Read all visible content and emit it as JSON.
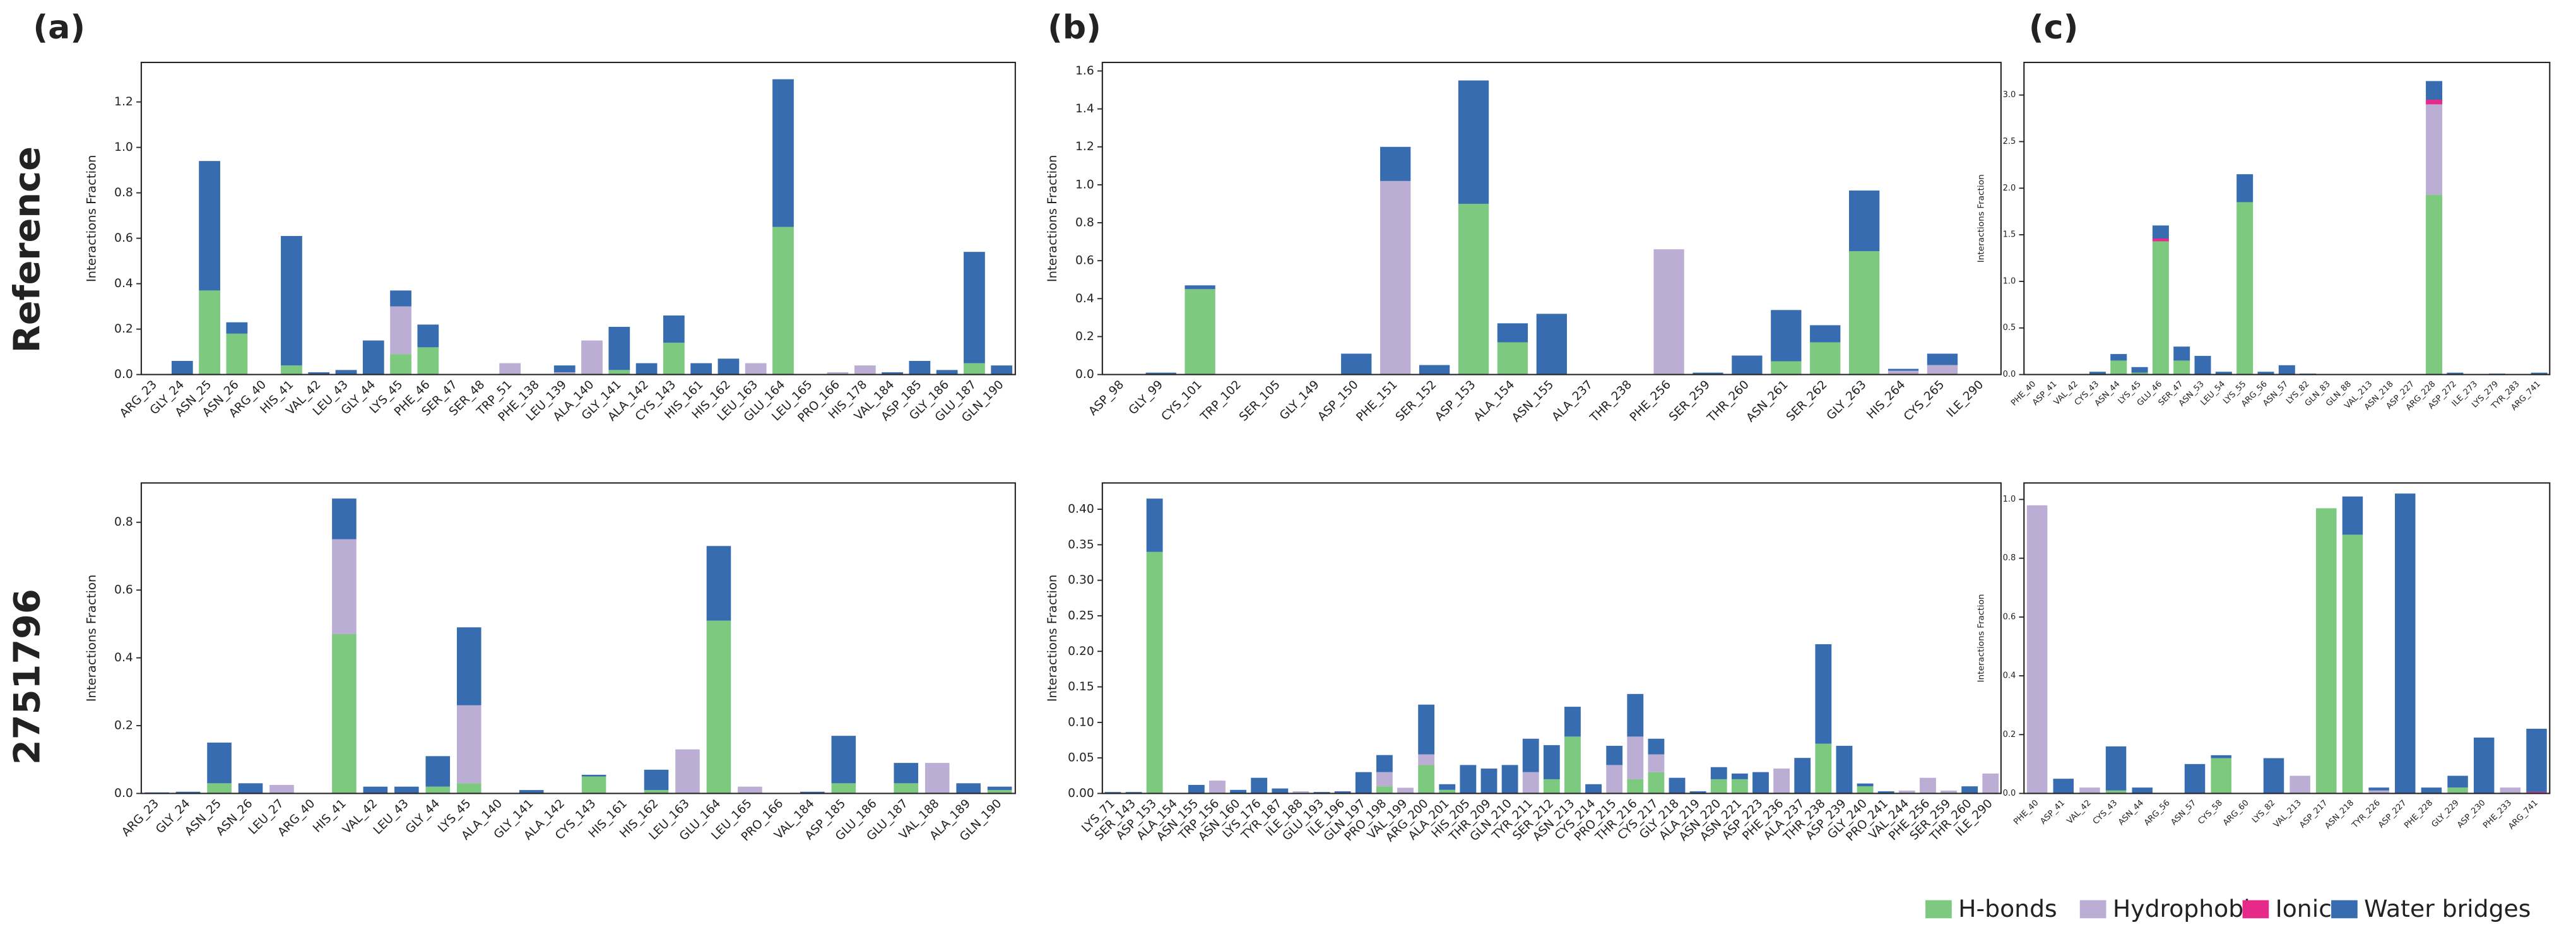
{
  "panel_labels": [
    "(a)",
    "(b)",
    "(c)"
  ],
  "row_labels": [
    "Reference",
    "2751796"
  ],
  "chart_data": [
    {
      "type": "bar",
      "stacked": true,
      "ylabel": "Interactions Fraction",
      "ylim": [
        0,
        1.374
      ],
      "yticks": [
        {
          "value": 0,
          "label": "0.0"
        },
        0.2,
        0.4,
        0.6,
        0.8,
        {
          "value": 1,
          "label": "1.0"
        },
        1.2
      ],
      "categories": [
        "ARG_23",
        "GLY_24",
        "ASN_25",
        "ASN_26",
        "ARG_40",
        "HIS_41",
        "VAL_42",
        "LEU_43",
        "GLY_44",
        "LYS_45",
        "PHE_46",
        "SER_47",
        "SER_48",
        "TRP_51",
        "PHE_138",
        "LEU_139",
        "ALA_140",
        "GLY_141",
        "ALA_142",
        "CYS_143",
        "HIS_161",
        "HIS_162",
        "LEU_163",
        "GLU_164",
        "LEU_165",
        "PRO_166",
        "HIS_178",
        "VAL_184",
        "ASP_185",
        "GLY_186",
        "GLU_187",
        "GLN_190"
      ],
      "series": [
        {
          "name": "H-bonds",
          "color": "#7dc97f",
          "values": [
            0,
            0,
            0.37,
            0.18,
            0,
            0.04,
            0,
            0,
            0,
            0.09,
            0.12,
            0,
            0,
            0,
            0,
            0,
            0,
            0.02,
            0,
            0.14,
            0,
            0,
            0,
            0.65,
            0,
            0,
            0,
            0,
            0,
            0,
            0.05,
            0
          ]
        },
        {
          "name": "Hydrophobic",
          "color": "#bcadd4",
          "values": [
            0,
            0,
            0,
            0,
            0,
            0,
            0,
            0,
            0,
            0.21,
            0,
            0,
            0,
            0.05,
            0,
            0.01,
            0.15,
            0,
            0,
            0,
            0,
            0,
            0.05,
            0,
            0,
            0.01,
            0.04,
            0,
            0,
            0,
            0,
            0
          ]
        },
        {
          "name": "Ionic",
          "color": "#e7298a",
          "values": [
            0,
            0,
            0,
            0,
            0,
            0,
            0,
            0,
            0,
            0,
            0,
            0,
            0,
            0,
            0,
            0,
            0,
            0,
            0,
            0,
            0,
            0,
            0,
            0,
            0,
            0,
            0,
            0,
            0,
            0,
            0,
            0
          ]
        },
        {
          "name": "Water bridges",
          "color": "#386cb0",
          "values": [
            0,
            0.06,
            0.57,
            0.05,
            0,
            0.57,
            0.01,
            0.02,
            0.15,
            0.07,
            0.1,
            0,
            0,
            0,
            0,
            0.03,
            0,
            0.19,
            0.05,
            0.12,
            0.05,
            0.07,
            0,
            0.65,
            0,
            0,
            0,
            0.01,
            0.06,
            0.02,
            0.49,
            0.04
          ]
        }
      ]
    },
    {
      "type": "bar",
      "stacked": true,
      "ylabel": "Interactions Fraction",
      "ylim": [
        0,
        1.645
      ],
      "yticks": [
        {
          "value": 0,
          "label": "0.0"
        },
        0.2,
        0.4,
        0.6,
        0.8,
        {
          "value": 1,
          "label": "1.0"
        },
        1.2,
        1.4,
        1.6
      ],
      "categories": [
        "ASP_98",
        "GLY_99",
        "CYS_101",
        "TRP_102",
        "SER_105",
        "GLY_149",
        "ASP_150",
        "PHE_151",
        "SER_152",
        "ASP_153",
        "ALA_154",
        "ASN_155",
        "ALA_237",
        "THR_238",
        "PHE_256",
        "SER_259",
        "THR_260",
        "ASN_261",
        "SER_262",
        "GLY_263",
        "HIS_264",
        "CYS_265",
        "ILE_290"
      ],
      "series": [
        {
          "name": "H-bonds",
          "color": "#7dc97f",
          "values": [
            0,
            0,
            0.45,
            0,
            0,
            0,
            0,
            0,
            0,
            0.9,
            0.17,
            0,
            0,
            0,
            0,
            0,
            0,
            0.07,
            0.17,
            0.65,
            0,
            0,
            0
          ]
        },
        {
          "name": "Hydrophobic",
          "color": "#bcadd4",
          "values": [
            0,
            0,
            0,
            0,
            0,
            0,
            0,
            1.02,
            0,
            0,
            0,
            0,
            0,
            0,
            0.66,
            0,
            0,
            0,
            0,
            0,
            0.02,
            0.05,
            0
          ]
        },
        {
          "name": "Ionic",
          "color": "#e7298a",
          "values": [
            0,
            0,
            0,
            0,
            0,
            0,
            0,
            0,
            0,
            0,
            0,
            0,
            0,
            0,
            0,
            0,
            0,
            0,
            0,
            0,
            0,
            0,
            0
          ]
        },
        {
          "name": "Water bridges",
          "color": "#386cb0",
          "values": [
            0,
            0.01,
            0.02,
            0,
            0,
            0,
            0.11,
            0.18,
            0.05,
            0.65,
            0.1,
            0.32,
            0,
            0,
            0,
            0.01,
            0.1,
            0.27,
            0.09,
            0.32,
            0.01,
            0.06,
            0
          ]
        }
      ]
    },
    {
      "type": "bar",
      "stacked": true,
      "ylabel": "Interactions Fraction",
      "ylim": [
        0,
        3.35
      ],
      "yticks": [
        {
          "value": 0,
          "label": "0.0"
        },
        0.5,
        {
          "value": 1,
          "label": "1.0"
        },
        1.5,
        {
          "value": 2,
          "label": "2.0"
        },
        2.5,
        {
          "value": 3,
          "label": "3.0"
        }
      ],
      "categories": [
        "PHE_40",
        "ASP_41",
        "VAL_42",
        "CYS_43",
        "ASN_44",
        "LYS_45",
        "GLU_46",
        "SER_47",
        "ASN_53",
        "LEU_54",
        "LYS_55",
        "ARG_56",
        "ASN_57",
        "LYS_82",
        "GLN_83",
        "GLN_88",
        "VAL_213",
        "ASN_218",
        "ASP_227",
        "ARG_228",
        "ASP_272",
        "ILE_273",
        "LYS_279",
        "TYR_283",
        "ARG_741"
      ],
      "series": [
        {
          "name": "H-bonds",
          "color": "#7dc97f",
          "values": [
            0,
            0,
            0,
            0,
            0.15,
            0.02,
            1.43,
            0.15,
            0,
            0,
            1.85,
            0,
            0,
            0,
            0,
            0,
            0,
            0,
            0,
            1.93,
            0,
            0,
            0,
            0,
            0
          ]
        },
        {
          "name": "Hydrophobic",
          "color": "#bcadd4",
          "values": [
            0,
            0,
            0,
            0,
            0,
            0,
            0,
            0,
            0,
            0,
            0,
            0,
            0,
            0,
            0,
            0,
            0,
            0,
            0,
            0.97,
            0,
            0,
            0,
            0,
            0
          ]
        },
        {
          "name": "Ionic",
          "color": "#e7298a",
          "values": [
            0,
            0,
            0,
            0,
            0,
            0,
            0.03,
            0,
            0,
            0,
            0,
            0,
            0,
            0,
            0,
            0,
            0,
            0,
            0,
            0.05,
            0,
            0,
            0,
            0,
            0
          ]
        },
        {
          "name": "Water bridges",
          "color": "#386cb0",
          "values": [
            0,
            0,
            0,
            0.03,
            0.07,
            0.06,
            0.14,
            0.15,
            0.2,
            0.03,
            0.3,
            0.03,
            0.1,
            0.01,
            0,
            0,
            0,
            0,
            0,
            0.2,
            0.02,
            0,
            0.01,
            0,
            0.02
          ]
        }
      ]
    },
    {
      "type": "bar",
      "stacked": true,
      "ylabel": "Interactions Fraction",
      "ylim": [
        0,
        0.916
      ],
      "yticks": [
        {
          "value": 0,
          "label": "0.0"
        },
        0.2,
        0.4,
        0.6,
        0.8
      ],
      "categories": [
        "ARG_23",
        "GLY_24",
        "ASN_25",
        "ASN_26",
        "LEU_27",
        "ARG_40",
        "HIS_41",
        "VAL_42",
        "LEU_43",
        "GLY_44",
        "LYS_45",
        "ALA_140",
        "GLY_141",
        "ALA_142",
        "CYS_143",
        "HIS_161",
        "HIS_162",
        "LEU_163",
        "GLU_164",
        "LEU_165",
        "PRO_166",
        "VAL_184",
        "ASP_185",
        "GLU_186",
        "GLU_187",
        "VAL_188",
        "ALA_189",
        "GLN_190"
      ],
      "series": [
        {
          "name": "H-bonds",
          "color": "#7dc97f",
          "values": [
            0,
            0,
            0.03,
            0,
            0,
            0,
            0.47,
            0,
            0,
            0.02,
            0.03,
            0,
            0,
            0,
            0.05,
            0,
            0.01,
            0,
            0.51,
            0,
            0,
            0,
            0.03,
            0,
            0.03,
            0,
            0,
            0.01
          ]
        },
        {
          "name": "Hydrophobic",
          "color": "#bcadd4",
          "values": [
            0,
            0,
            0,
            0,
            0.025,
            0,
            0.28,
            0,
            0,
            0,
            0.23,
            0,
            0,
            0,
            0,
            0,
            0,
            0.13,
            0,
            0.02,
            0,
            0,
            0,
            0,
            0,
            0.09,
            0,
            0
          ]
        },
        {
          "name": "Ionic",
          "color": "#e7298a",
          "values": [
            0,
            0,
            0,
            0,
            0,
            0,
            0,
            0,
            0,
            0,
            0,
            0,
            0,
            0,
            0,
            0,
            0,
            0,
            0,
            0,
            0,
            0,
            0,
            0,
            0,
            0,
            0,
            0
          ]
        },
        {
          "name": "Water bridges",
          "color": "#386cb0",
          "values": [
            0.003,
            0.005,
            0.12,
            0.03,
            0,
            0,
            0.12,
            0.02,
            0.02,
            0.09,
            0.23,
            0,
            0.01,
            0,
            0.005,
            0,
            0.06,
            0,
            0.22,
            0,
            0,
            0.005,
            0.14,
            0,
            0.06,
            0,
            0.03,
            0.01
          ]
        }
      ]
    },
    {
      "type": "bar",
      "stacked": true,
      "ylabel": "Interactions Fraction",
      "ylim": [
        0,
        0.437
      ],
      "yticks": [
        {
          "value": 0,
          "label": "0.00"
        },
        0.05,
        {
          "value": 0.1,
          "label": "0.10"
        },
        0.15,
        {
          "value": 0.2,
          "label": "0.20"
        },
        0.25,
        {
          "value": 0.3,
          "label": "0.30"
        },
        0.35,
        {
          "value": 0.4,
          "label": "0.40"
        }
      ],
      "categories": [
        "LYS_71",
        "SER_143",
        "ASP_153",
        "ALA_154",
        "ASN_155",
        "TRP_156",
        "ASN_160",
        "LYS_176",
        "TYR_187",
        "ILE_188",
        "GLU_193",
        "ILE_196",
        "GLN_197",
        "PRO_198",
        "VAL_199",
        "ARG_200",
        "ALA_201",
        "HIS_205",
        "THR_209",
        "GLN_210",
        "TYR_211",
        "SER_212",
        "ASN_213",
        "CYS_214",
        "PRO_215",
        "THR_216",
        "CYS_217",
        "GLY_218",
        "ALA_219",
        "ASN_220",
        "ASN_221",
        "ASP_223",
        "PHE_236",
        "ALA_237",
        "THR_238",
        "ASP_239",
        "GLY_240",
        "PRO_241",
        "VAL_244",
        "PHE_256",
        "SER_259",
        "THR_260",
        "ILE_290"
      ],
      "series": [
        {
          "name": "H-bonds",
          "color": "#7dc97f",
          "values": [
            0,
            0,
            0.34,
            0,
            0,
            0,
            0,
            0,
            0,
            0,
            0,
            0,
            0,
            0.01,
            0,
            0.04,
            0.005,
            0,
            0,
            0,
            0,
            0.02,
            0.08,
            0,
            0,
            0.02,
            0.03,
            0,
            0,
            0.02,
            0.02,
            0,
            0,
            0,
            0.07,
            0,
            0.01,
            0,
            0,
            0,
            0,
            0,
            0
          ]
        },
        {
          "name": "Hydrophobic",
          "color": "#bcadd4",
          "values": [
            0,
            0,
            0,
            0,
            0,
            0.018,
            0,
            0,
            0,
            0.003,
            0,
            0,
            0,
            0.02,
            0.008,
            0.015,
            0,
            0,
            0,
            0,
            0.03,
            0,
            0,
            0,
            0.04,
            0.06,
            0.025,
            0,
            0,
            0,
            0,
            0,
            0.035,
            0,
            0,
            0,
            0,
            0,
            0.004,
            0.022,
            0.004,
            0,
            0.028
          ]
        },
        {
          "name": "Ionic",
          "color": "#e7298a",
          "values": [
            0,
            0,
            0,
            0,
            0,
            0,
            0,
            0,
            0,
            0,
            0,
            0,
            0,
            0,
            0,
            0,
            0,
            0,
            0,
            0,
            0,
            0,
            0,
            0,
            0,
            0,
            0,
            0,
            0,
            0,
            0,
            0,
            0,
            0,
            0,
            0,
            0,
            0,
            0,
            0,
            0,
            0,
            0
          ]
        },
        {
          "name": "Water bridges",
          "color": "#386cb0",
          "values": [
            0.002,
            0.002,
            0.075,
            0,
            0.012,
            0,
            0.005,
            0.022,
            0.007,
            0,
            0.002,
            0.003,
            0.03,
            0.024,
            0,
            0.07,
            0.008,
            0.04,
            0.035,
            0.04,
            0.047,
            0.048,
            0.042,
            0.013,
            0.027,
            0.06,
            0.022,
            0.022,
            0.003,
            0.017,
            0.008,
            0.03,
            0,
            0.05,
            0.14,
            0.067,
            0.004,
            0.003,
            0,
            0,
            0,
            0.01,
            0
          ]
        }
      ]
    },
    {
      "type": "bar",
      "stacked": true,
      "ylabel": "Interactions Fraction",
      "ylim": [
        0,
        1.056
      ],
      "yticks": [
        {
          "value": 0,
          "label": "0.0"
        },
        0.2,
        0.4,
        0.6,
        0.8,
        {
          "value": 1,
          "label": "1.0"
        }
      ],
      "categories": [
        "PHE_40",
        "ASP_41",
        "VAL_42",
        "CYS_43",
        "ASN_44",
        "ARG_56",
        "ASN_57",
        "CYS_58",
        "ARG_60",
        "LYS_82",
        "VAL_213",
        "ASP_217",
        "ASN_218",
        "TYR_226",
        "ASP_227",
        "PHE_228",
        "GLY_229",
        "ASP_230",
        "PHE_233",
        "ARG_741"
      ],
      "series": [
        {
          "name": "H-bonds",
          "color": "#7dc97f",
          "values": [
            0,
            0,
            0,
            0.01,
            0,
            0,
            0,
            0.12,
            0,
            0,
            0,
            0.97,
            0.88,
            0,
            0,
            0,
            0.02,
            0,
            0,
            0
          ]
        },
        {
          "name": "Hydrophobic",
          "color": "#bcadd4",
          "values": [
            0.98,
            0,
            0.02,
            0,
            0,
            0,
            0,
            0,
            0,
            0,
            0.06,
            0,
            0,
            0.01,
            0,
            0,
            0,
            0,
            0.02,
            0
          ]
        },
        {
          "name": "Ionic",
          "color": "#e7298a",
          "values": [
            0,
            0,
            0,
            0,
            0,
            0,
            0,
            0,
            0,
            0,
            0,
            0,
            0,
            0,
            0,
            0,
            0,
            0,
            0,
            0.005
          ]
        },
        {
          "name": "Water bridges",
          "color": "#386cb0",
          "values": [
            0,
            0.05,
            0,
            0.15,
            0.02,
            0,
            0.1,
            0.01,
            0,
            0.12,
            0,
            0,
            0.13,
            0.01,
            1.02,
            0.02,
            0.04,
            0.19,
            0,
            0.215
          ]
        }
      ]
    }
  ]
}
